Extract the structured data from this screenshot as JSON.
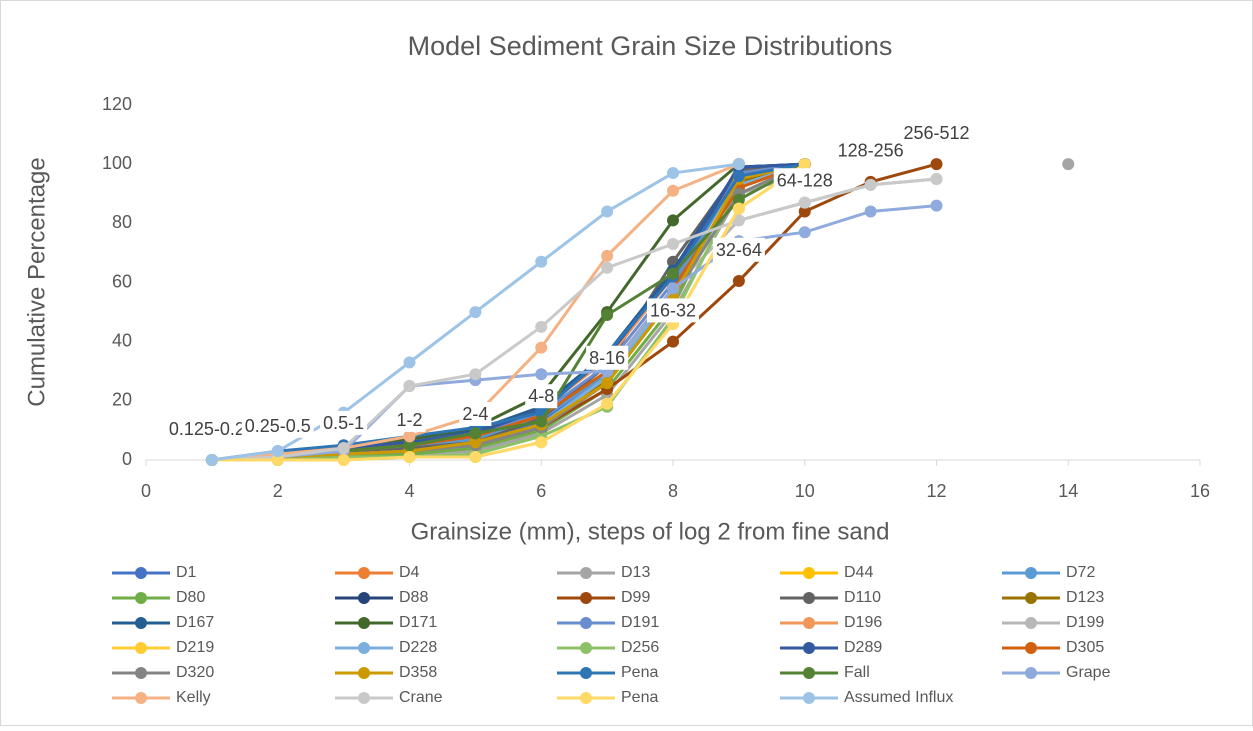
{
  "chart_data": {
    "type": "line",
    "title": "Model Sediment Grain Size Distributions",
    "x_label": "Grainsize (mm), steps of log 2 from fine sand",
    "y_label": "Cumulative Percentage",
    "x": [
      1,
      2,
      3,
      4,
      5,
      6,
      7,
      8,
      9,
      10,
      11,
      12,
      13,
      14
    ],
    "xlim": [
      0,
      16
    ],
    "xticks": [
      0,
      2,
      4,
      6,
      8,
      10,
      12,
      14,
      16
    ],
    "ylim": [
      0,
      120
    ],
    "yticks": [
      0,
      20,
      40,
      60,
      80,
      100,
      120
    ],
    "grid": false,
    "legend": "bottom",
    "series": [
      {
        "name": "D1",
        "color": "#4472c4",
        "values": [
          0,
          1,
          2,
          4,
          6,
          13,
          28,
          55,
          100,
          null,
          null,
          null,
          null,
          null
        ]
      },
      {
        "name": "D4",
        "color": "#ed7d31",
        "values": [
          0,
          1,
          3,
          5,
          8,
          14,
          30,
          58,
          100,
          null,
          null,
          null,
          null,
          null
        ]
      },
      {
        "name": "D13",
        "color": "#a5a5a5",
        "values": [
          0,
          0,
          1,
          2,
          3,
          9,
          22,
          50,
          90,
          97,
          null,
          null,
          null,
          100
        ]
      },
      {
        "name": "D44",
        "color": "#ffc000",
        "values": [
          0,
          1,
          2,
          3,
          5,
          12,
          26,
          55,
          95,
          100,
          null,
          null,
          null,
          null
        ]
      },
      {
        "name": "D72",
        "color": "#5b9bd5",
        "values": [
          0,
          1,
          2,
          4,
          7,
          14,
          29,
          58,
          97,
          100,
          null,
          null,
          null,
          null
        ]
      },
      {
        "name": "D80",
        "color": "#70ad47",
        "values": [
          0,
          1,
          1,
          2,
          4,
          10,
          24,
          52,
          96,
          100,
          null,
          null,
          null,
          null
        ]
      },
      {
        "name": "D88",
        "color": "#264478",
        "values": [
          0,
          2,
          4,
          6,
          9,
          18,
          36,
          62,
          99,
          100,
          null,
          null,
          null,
          null
        ]
      },
      {
        "name": "D99",
        "color": "#9e480e",
        "values": [
          0,
          1,
          2,
          3,
          5,
          11,
          24,
          40,
          60.5,
          84,
          94,
          100,
          null,
          null
        ],
        "labels": [
          "0.125-0.25",
          "0.25-0.5",
          "0.5-1",
          "1-2",
          "2-4",
          "4-8",
          "8-16",
          "16-32",
          "32-64",
          "64-128",
          "128-256",
          "256-512",
          null,
          null
        ]
      },
      {
        "name": "D110",
        "color": "#636363",
        "values": [
          0,
          1,
          2,
          4,
          6,
          14,
          32,
          67,
          98,
          100,
          null,
          null,
          null,
          null
        ]
      },
      {
        "name": "D123",
        "color": "#997300",
        "values": [
          0,
          1,
          2,
          3,
          6,
          12,
          27,
          56,
          94,
          100,
          null,
          null,
          null,
          null
        ]
      },
      {
        "name": "D167",
        "color": "#255e91",
        "values": [
          0,
          2,
          4,
          7,
          10,
          18,
          36,
          64,
          99,
          100,
          null,
          null,
          null,
          null
        ]
      },
      {
        "name": "D171",
        "color": "#43682b",
        "values": [
          0,
          2,
          4,
          7,
          11,
          22,
          50,
          81,
          100,
          null,
          null,
          null,
          null,
          null
        ]
      },
      {
        "name": "D191",
        "color": "#698ed0",
        "values": [
          0,
          1,
          3,
          5,
          8,
          16,
          32,
          60,
          97,
          100,
          null,
          null,
          null,
          null
        ]
      },
      {
        "name": "D196",
        "color": "#f1975a",
        "values": [
          0,
          2,
          4,
          6,
          9,
          17,
          34,
          62,
          96,
          100,
          null,
          null,
          null,
          null
        ]
      },
      {
        "name": "D199",
        "color": "#b7b7b7",
        "values": [
          0,
          1,
          2,
          3,
          5,
          12,
          28,
          58,
          81,
          87,
          93,
          95,
          null,
          null
        ]
      },
      {
        "name": "D219",
        "color": "#ffcd33",
        "values": [
          0,
          0,
          0,
          1,
          1,
          6,
          19,
          46,
          85,
          100,
          null,
          null,
          null,
          null
        ]
      },
      {
        "name": "D228",
        "color": "#7cafdd",
        "values": [
          0,
          1,
          2,
          3,
          6,
          12,
          28,
          56,
          93,
          100,
          null,
          null,
          null,
          null
        ]
      },
      {
        "name": "D256",
        "color": "#8cc168",
        "values": [
          0,
          0,
          1,
          1,
          2,
          8,
          18,
          48,
          92,
          100,
          null,
          null,
          null,
          null
        ]
      },
      {
        "name": "D289",
        "color": "#335aa1",
        "values": [
          0,
          2,
          4,
          6,
          9,
          17,
          35,
          63,
          99,
          100,
          null,
          null,
          null,
          null
        ]
      },
      {
        "name": "D305",
        "color": "#d26012",
        "values": [
          0,
          1,
          3,
          5,
          8,
          15,
          30,
          58,
          92,
          100,
          null,
          null,
          null,
          null
        ]
      },
      {
        "name": "D320",
        "color": "#848484",
        "values": [
          0,
          1,
          2,
          3,
          5,
          11,
          26,
          55,
          90,
          100,
          null,
          null,
          null,
          null
        ]
      },
      {
        "name": "D358",
        "color": "#cc9a00",
        "values": [
          0,
          1,
          2,
          3,
          6,
          12,
          26,
          55,
          95,
          100,
          null,
          null,
          null,
          null
        ]
      },
      {
        "name": "Pena",
        "color": "#2e75b6",
        "values": [
          0,
          3,
          5,
          8,
          11,
          16,
          36,
          62,
          96,
          100,
          null,
          null,
          null,
          null
        ]
      },
      {
        "name": "Fall",
        "color": "#548235",
        "values": [
          0,
          1,
          3,
          5,
          9,
          13,
          49,
          63,
          88,
          100,
          null,
          null,
          null,
          null
        ]
      },
      {
        "name": "Grape",
        "color": "#8faadc",
        "values": [
          0,
          1,
          3,
          25,
          27,
          29,
          30,
          58,
          74,
          77,
          84,
          86,
          null,
          null
        ]
      },
      {
        "name": "Kelly",
        "color": "#f4b183",
        "values": [
          0,
          2,
          4,
          8,
          15,
          38,
          69,
          91,
          100,
          null,
          null,
          null,
          null,
          null
        ]
      },
      {
        "name": "Crane",
        "color": "#c9c9c9",
        "values": [
          0,
          1,
          4,
          25,
          29,
          45,
          65,
          73,
          81,
          87,
          93,
          95,
          null,
          null
        ]
      },
      {
        "name": "Pena",
        "color": "#ffd966",
        "values": [
          0,
          0,
          0,
          1,
          1,
          6,
          19,
          46,
          85,
          100,
          null,
          null,
          null,
          null
        ]
      },
      {
        "name": "Assumed Influx",
        "color": "#9dc3e6",
        "values": [
          0,
          3,
          16,
          33,
          50,
          67,
          84,
          97,
          100,
          null,
          null,
          null,
          null,
          null
        ]
      }
    ]
  }
}
